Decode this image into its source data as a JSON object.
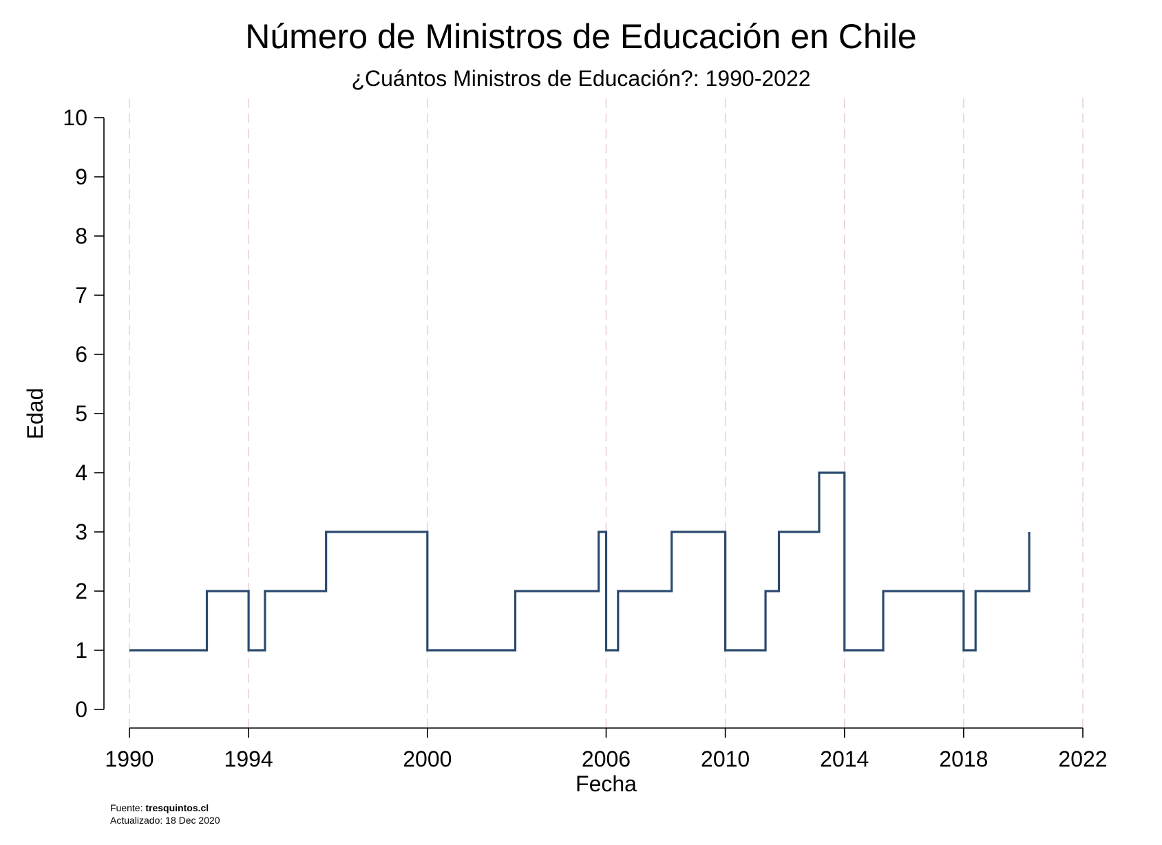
{
  "chart_data": {
    "type": "line",
    "step": "post",
    "title": "Número de Ministros de Educación en Chile",
    "subtitle": "¿Cuántos Ministros de Educación?: 1990-2022",
    "xlabel": "Fecha",
    "ylabel": "Edad",
    "xlim": [
      1990,
      2022
    ],
    "ylim": [
      0,
      10
    ],
    "x_ticks": [
      1990,
      1994,
      2000,
      2006,
      2010,
      2014,
      2018,
      2022
    ],
    "y_ticks": [
      0,
      1,
      2,
      3,
      4,
      5,
      6,
      7,
      8,
      9,
      10
    ],
    "vertical_guides": [
      1990,
      1994,
      2000,
      2006,
      2010,
      2014,
      2018,
      2022
    ],
    "line_color": "#2b4a6e",
    "guide_color": "#e9cfd6",
    "series": [
      {
        "x": [
          1990.0,
          1992.6,
          1994.0,
          1994.55,
          1996.6,
          2000.0,
          2002.95,
          2005.75,
          2006.0,
          2006.4,
          2008.2,
          2010.0,
          2011.35,
          2011.8,
          2013.15,
          2014.0,
          2015.3,
          2018.0,
          2018.4,
          2020.2
        ],
        "y": [
          1,
          2,
          1,
          2,
          3,
          1,
          2,
          3,
          1,
          2,
          3,
          1,
          2,
          3,
          4,
          1,
          2,
          1,
          2,
          3
        ]
      }
    ]
  },
  "footer": {
    "source_label": "Fuente:",
    "source_value": "tresquintos.cl",
    "updated": "Actualizado: 18 Dec 2020"
  }
}
